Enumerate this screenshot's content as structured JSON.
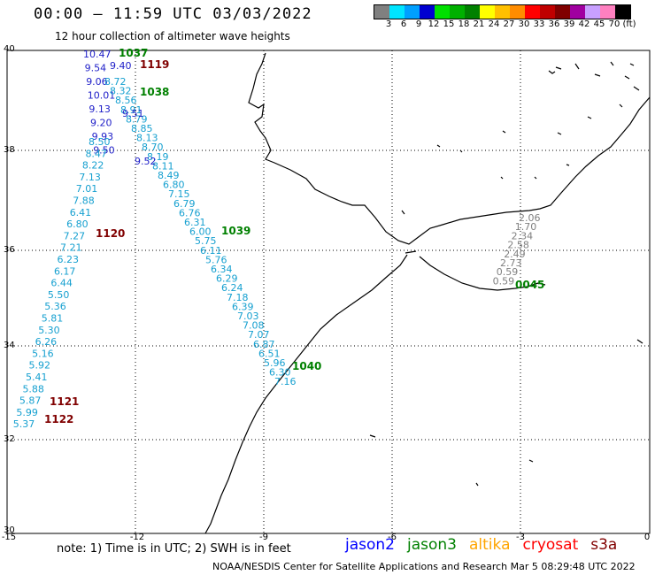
{
  "header": {
    "title": "00:00 – 11:59 UTC 03/03/2022",
    "subtitle": "12 hour collection of altimeter wave heights"
  },
  "color_scale": {
    "labels": [
      "3",
      "6",
      "9",
      "12",
      "15",
      "18",
      "21",
      "24",
      "27",
      "30",
      "33",
      "36",
      "39",
      "42",
      "45",
      "70",
      "(ft)"
    ],
    "colors": [
      "#808080",
      "#00e5ff",
      "#00a0ff",
      "#0000d0",
      "#00e000",
      "#00b000",
      "#008000",
      "#ffff00",
      "#ffc000",
      "#ff8c00",
      "#ff0000",
      "#c00000",
      "#800000",
      "#a000a0",
      "#c8a0ff",
      "#ff80c0",
      "#000000"
    ]
  },
  "axes": {
    "lat_labels": [
      "40",
      "38",
      "36",
      "34",
      "32",
      "30"
    ],
    "lon_labels": [
      "-15",
      "-12",
      "-9",
      "-6",
      "-3",
      "0"
    ]
  },
  "passes": [
    {
      "id": "1037",
      "color": "#008000"
    },
    {
      "id": "1119",
      "color": "#800000"
    },
    {
      "id": "1038",
      "color": "#008000"
    },
    {
      "id": "1120",
      "color": "#800000"
    },
    {
      "id": "1039",
      "color": "#008000"
    },
    {
      "id": "1040",
      "color": "#008000"
    },
    {
      "id": "1121",
      "color": "#800000"
    },
    {
      "id": "1122",
      "color": "#800000"
    },
    {
      "id": "0045",
      "color": "#008000"
    }
  ],
  "tracks": {
    "jason2_west": {
      "color": "#1e1ec8",
      "values": [
        "10.47",
        "9.54",
        "9.06",
        "10.01",
        "9.13",
        "9.20",
        "9.93",
        "9.50"
      ]
    },
    "jason3_west": {
      "color": "#16a0d0",
      "values": [
        "8.50",
        "8.47",
        "8.22",
        "7.13",
        "7.01",
        "7.88",
        "6.41",
        "6.80",
        "7.27",
        "7.21",
        "6.23",
        "6.17",
        "6.44",
        "5.50",
        "5.36",
        "5.81",
        "5.30",
        "6.26",
        "5.16",
        "5.92",
        "5.41",
        "5.88",
        "5.87",
        "5.99",
        "5.37"
      ]
    },
    "jason3_east": {
      "color": "#16a0d0",
      "values": [
        "8.72",
        "8.32",
        "8.56",
        "8.91",
        "8.79",
        "8.85",
        "8.13",
        "8.70",
        "8.19",
        "8.11",
        "8.49",
        "6.80",
        "7.15",
        "6.79",
        "6.76",
        "6.31",
        "6.00",
        "5.75",
        "6.11",
        "5.76",
        "6.34",
        "6.29",
        "6.24",
        "7.18",
        "6.39",
        "7.03",
        "7.08",
        "7.07",
        "6.87",
        "6.51",
        "5.96",
        "6.30",
        "7.16"
      ]
    },
    "jason2_east": {
      "color": "#1e1ec8",
      "values": [
        "9.40",
        "9.51",
        "9.52"
      ]
    },
    "grey_med": {
      "color": "#808080",
      "values": [
        "2.06",
        "1.70",
        "2.34",
        "2.58",
        "2.49",
        "2.73",
        "0.59",
        "0.59"
      ]
    }
  },
  "footer": {
    "note": "note: 1) Time is in UTC; 2) SWH is in feet",
    "credit": "NOAA/NESDIS Center for Satellite Applications and Research   Mar  5 08:29:48 UTC 2022"
  },
  "satellites": [
    {
      "name": "jason2",
      "color": "#0000ff"
    },
    {
      "name": "jason3",
      "color": "#008000"
    },
    {
      "name": "altika",
      "color": "#ffa500"
    },
    {
      "name": "cryosat",
      "color": "#ff0000"
    },
    {
      "name": "s3a",
      "color": "#800000"
    }
  ]
}
